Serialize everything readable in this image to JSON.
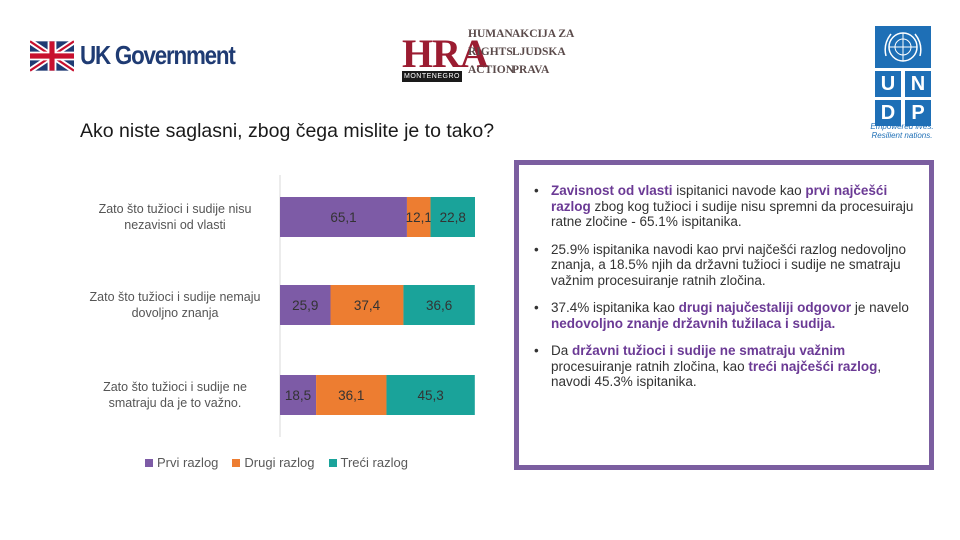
{
  "logos": {
    "uk": {
      "text": "UK Government"
    },
    "hra": {
      "letters": "HRA",
      "sub": "MONTENEGRO",
      "lines": [
        "HUMAN",
        "RIGHTS",
        "ACTION",
        "AKCIJA ZA",
        "LJUDSKA",
        "PRAVA"
      ]
    },
    "undp": {
      "letters": [
        "U",
        "N",
        "D",
        "P"
      ],
      "tagline": "Empowered lives. Resilient nations."
    }
  },
  "title": "Ako niste saglasni, zbog čega mislite je to tako?",
  "chart_data": {
    "type": "bar",
    "orientation": "horizontal",
    "stacked": true,
    "categories": [
      [
        "Zato što tužioci i sudije nisu",
        "nezavisni od vlasti"
      ],
      [
        "Zato što tužioci i sudije nemaju",
        "dovoljno znanja"
      ],
      [
        "Zato što tužioci i sudije ne",
        "smatraju da je to važno."
      ]
    ],
    "series": [
      {
        "name": "Prvi razlog",
        "color": "#7d5ba6",
        "values": [
          65.1,
          25.9,
          18.5
        ],
        "labels": [
          "65,1",
          "25,9",
          "18,5"
        ]
      },
      {
        "name": "Drugi razlog",
        "color": "#ed7d31",
        "values": [
          12.1,
          37.4,
          36.1
        ],
        "labels": [
          "12,1",
          "37,4",
          "36,1"
        ]
      },
      {
        "name": "Treći razlog",
        "color": "#1aa39a",
        "values": [
          22.8,
          36.6,
          45.3
        ],
        "labels": [
          "22,8",
          "36,6",
          "45,3"
        ]
      }
    ],
    "xlim": [
      0,
      100
    ],
    "legend": "bottom"
  },
  "bullets": [
    [
      {
        "t": "Zavisnost od vlasti",
        "h": true
      },
      {
        "t": " ispitanici navode kao "
      },
      {
        "t": "prvi najčešći razlog",
        "h": true
      },
      {
        "t": " zbog kog tužioci i sudije nisu spremni da procesuiraju ratne zločine - 65.1% ispitanika."
      }
    ],
    [
      {
        "t": "25.9% ispitanika navodi kao prvi najčešći razlog nedovoljno znanja, a 18.5% njih da državni tužioci i sudije ne smatraju važnim procesuiranje ratnih zločina."
      }
    ],
    [
      {
        "t": "37.4% ispitanika kao "
      },
      {
        "t": "drugi najučestaliji odgovor",
        "h": true
      },
      {
        "t": " je navelo "
      },
      {
        "t": "nedovoljno znanje državnih tužilaca i sudija.",
        "h": true
      }
    ],
    [
      {
        "t": "Da "
      },
      {
        "t": "državni tužioci i sudije ne smatraju važnim",
        "h": true
      },
      {
        "t": " procesuiranje ratnih zločina, kao "
      },
      {
        "t": "treći najčešći razlog",
        "h": true
      },
      {
        "t": ", navodi 45.3% ispitanika."
      }
    ]
  ]
}
